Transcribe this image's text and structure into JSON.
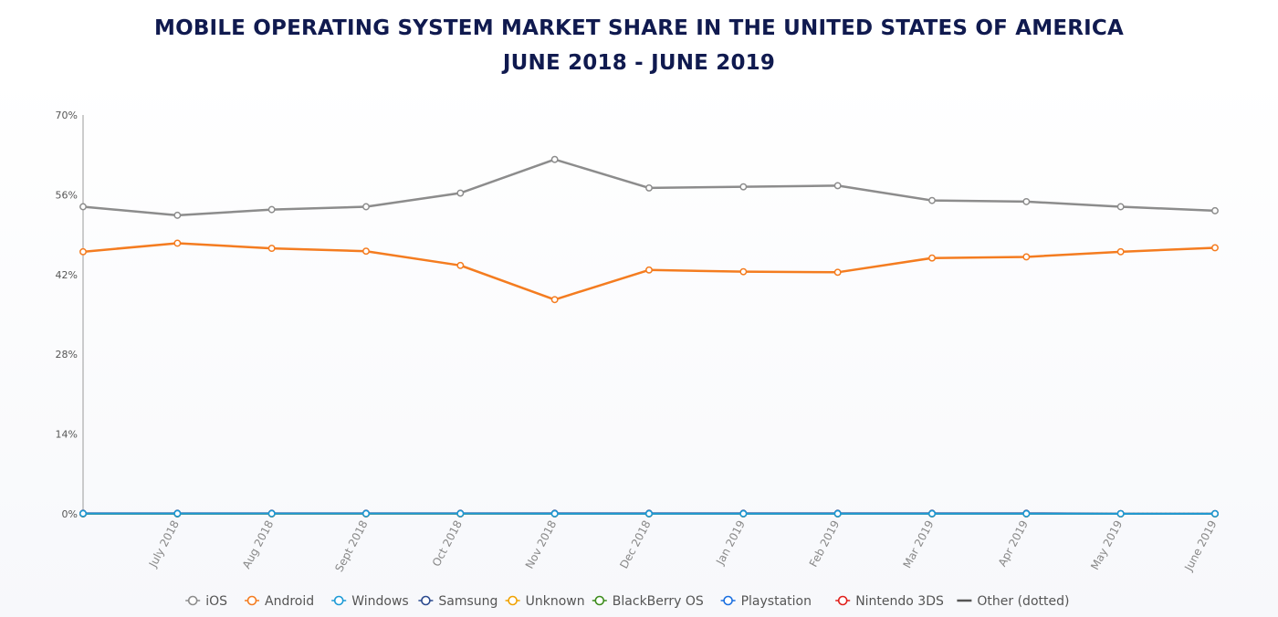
{
  "header": {
    "title": "MOBILE OPERATING SYSTEM MARKET SHARE IN THE UNITED STATES OF AMERICA",
    "subtitle": "JUNE 2018 - JUNE 2019"
  },
  "chart_data": {
    "type": "line",
    "title": "MOBILE OPERATING SYSTEM MARKET SHARE IN THE UNITED STATES OF AMERICA",
    "subtitle": "JUNE 2018 - JUNE 2019",
    "xlabel": "",
    "ylabel": "",
    "ylim": [
      0,
      70
    ],
    "y_ticks": [
      0,
      14,
      28,
      42,
      56,
      70
    ],
    "y_tick_labels": [
      "0%",
      "14%",
      "28%",
      "42%",
      "56%",
      "70%"
    ],
    "categories": [
      "",
      "July 2018",
      "Aug 2018",
      "Sept 2018",
      "Oct 2018",
      "Nov 2018",
      "Dec 2018",
      "Jan 2019",
      "Feb 2019",
      "Mar 2019",
      "Apr 2019",
      "May 2019",
      "June 2019"
    ],
    "grid": false,
    "legend_position": "bottom",
    "series": [
      {
        "name": "iOS",
        "color": "#8c8c8c",
        "marker": "circle",
        "values": [
          53.9,
          52.4,
          53.4,
          53.9,
          56.3,
          62.2,
          57.2,
          57.4,
          57.6,
          55.0,
          54.8,
          53.9,
          53.2
        ]
      },
      {
        "name": "Android",
        "color": "#f47c20",
        "marker": "circle",
        "values": [
          46.0,
          47.5,
          46.6,
          46.1,
          43.6,
          37.6,
          42.8,
          42.5,
          42.4,
          44.9,
          45.1,
          46.0,
          46.7
        ]
      },
      {
        "name": "Windows",
        "color": "#1c9ad6",
        "marker": "circle",
        "values": [
          0.05,
          0.05,
          0.04,
          0.04,
          0.04,
          0.03,
          0.03,
          0.03,
          0.03,
          0.03,
          0.03,
          0.02,
          0.02
        ]
      },
      {
        "name": "Samsung",
        "color": "#2b4a8f",
        "marker": "circle",
        "values": [
          0.1,
          0.1,
          0.1,
          0.1,
          0.1,
          0.1,
          0.1,
          0.1,
          0.1,
          0.1,
          0.1,
          0.05,
          0.05
        ]
      },
      {
        "name": "Unknown",
        "color": "#f0a202",
        "marker": "circle",
        "values": [
          0.05,
          0.05,
          0.03,
          0.03,
          0.03,
          0.03,
          0.03,
          0.03,
          0.03,
          0.03,
          0.03,
          0.02,
          0.02
        ]
      },
      {
        "name": "BlackBerry OS",
        "color": "#3c8c1c",
        "marker": "circle",
        "values": [
          0.02,
          0.02,
          0.02,
          0.02,
          0.02,
          0.02,
          0.02,
          0.02,
          0.02,
          0.02,
          0.02,
          0.01,
          0.01
        ]
      },
      {
        "name": "Playstation",
        "color": "#1a6fe0",
        "marker": "circle",
        "values": [
          0.01,
          0.01,
          0.01,
          0.01,
          0.01,
          0.01,
          0.01,
          0.01,
          0.01,
          0.01,
          0.01,
          0.01,
          0.01
        ]
      },
      {
        "name": "Nintendo 3DS",
        "color": "#e0201c",
        "marker": "circle",
        "values": [
          0.01,
          0.01,
          0.01,
          0.01,
          0.01,
          0.01,
          0.01,
          0.01,
          0.01,
          0.01,
          0.01,
          0.01,
          0.01
        ]
      },
      {
        "name": "Other (dotted)",
        "color": "#555555",
        "marker": "none",
        "dashed": true,
        "values": [
          0.02,
          0.02,
          0.02,
          0.02,
          0.02,
          0.02,
          0.02,
          0.02,
          0.02,
          0.02,
          0.02,
          0.02,
          0.02
        ]
      }
    ]
  }
}
